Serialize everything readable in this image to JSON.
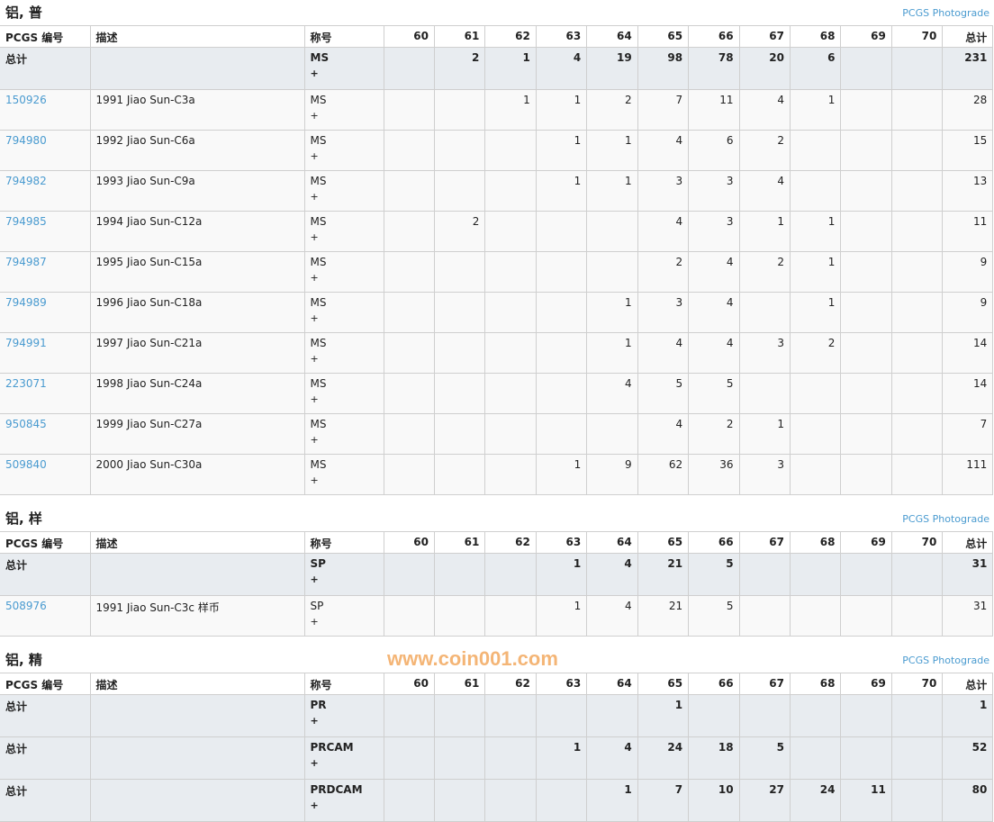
{
  "columns": {
    "pcgs": "PCGS 编号",
    "desc": "描述",
    "designation": "称号",
    "grades": [
      "60",
      "61",
      "62",
      "63",
      "64",
      "65",
      "66",
      "67",
      "68",
      "69",
      "70"
    ],
    "total": "总计"
  },
  "photograde_label": "PCGS Photograde",
  "watermark": "www.coin001.com",
  "link_color": "#4a9bd0",
  "sections": [
    {
      "title": "铝, 普",
      "rows": [
        {
          "type": "total",
          "pcgs": "总计",
          "desc": "",
          "grade": "MS",
          "plus": "+",
          "counts": [
            "",
            "2",
            "1",
            "4",
            "19",
            "98",
            "78",
            "20",
            "6",
            "",
            ""
          ],
          "total": "231"
        },
        {
          "type": "item",
          "pcgs": "150926",
          "desc": "1991 Jiao Sun-C3a",
          "grade": "MS",
          "plus": "+",
          "counts": [
            "",
            "",
            "1",
            "1",
            "2",
            "7",
            "11",
            "4",
            "1",
            "",
            ""
          ],
          "total": "28"
        },
        {
          "type": "item",
          "pcgs": "794980",
          "desc": "1992 Jiao Sun-C6a",
          "grade": "MS",
          "plus": "+",
          "counts": [
            "",
            "",
            "",
            "1",
            "1",
            "4",
            "6",
            "2",
            "",
            "",
            ""
          ],
          "total": "15"
        },
        {
          "type": "item",
          "pcgs": "794982",
          "desc": "1993 Jiao Sun-C9a",
          "grade": "MS",
          "plus": "+",
          "counts": [
            "",
            "",
            "",
            "1",
            "1",
            "3",
            "3",
            "4",
            "",
            "",
            ""
          ],
          "total": "13"
        },
        {
          "type": "item",
          "pcgs": "794985",
          "desc": "1994 Jiao Sun-C12a",
          "grade": "MS",
          "plus": "+",
          "counts": [
            "",
            "2",
            "",
            "",
            "",
            "4",
            "3",
            "1",
            "1",
            "",
            ""
          ],
          "total": "11"
        },
        {
          "type": "item",
          "pcgs": "794987",
          "desc": "1995 Jiao Sun-C15a",
          "grade": "MS",
          "plus": "+",
          "counts": [
            "",
            "",
            "",
            "",
            "",
            "2",
            "4",
            "2",
            "1",
            "",
            ""
          ],
          "total": "9"
        },
        {
          "type": "item",
          "pcgs": "794989",
          "desc": "1996 Jiao Sun-C18a",
          "grade": "MS",
          "plus": "+",
          "counts": [
            "",
            "",
            "",
            "",
            "1",
            "3",
            "4",
            "",
            "1",
            "",
            ""
          ],
          "total": "9"
        },
        {
          "type": "item",
          "pcgs": "794991",
          "desc": "1997 Jiao Sun-C21a",
          "grade": "MS",
          "plus": "+",
          "counts": [
            "",
            "",
            "",
            "",
            "1",
            "4",
            "4",
            "3",
            "2",
            "",
            ""
          ],
          "total": "14"
        },
        {
          "type": "item",
          "pcgs": "223071",
          "desc": "1998 Jiao Sun-C24a",
          "grade": "MS",
          "plus": "+",
          "counts": [
            "",
            "",
            "",
            "",
            "4",
            "5",
            "5",
            "",
            "",
            "",
            ""
          ],
          "total": "14"
        },
        {
          "type": "item",
          "pcgs": "950845",
          "desc": "1999 Jiao Sun-C27a",
          "grade": "MS",
          "plus": "+",
          "counts": [
            "",
            "",
            "",
            "",
            "",
            "4",
            "2",
            "1",
            "",
            "",
            ""
          ],
          "total": "7"
        },
        {
          "type": "item",
          "pcgs": "509840",
          "desc": "2000 Jiao Sun-C30a",
          "grade": "MS",
          "plus": "+",
          "counts": [
            "",
            "",
            "",
            "1",
            "9",
            "62",
            "36",
            "3",
            "",
            "",
            ""
          ],
          "total": "111"
        }
      ]
    },
    {
      "title": "铝, 样",
      "rows": [
        {
          "type": "total",
          "pcgs": "总计",
          "desc": "",
          "grade": "SP",
          "plus": "+",
          "counts": [
            "",
            "",
            "",
            "1",
            "4",
            "21",
            "5",
            "",
            "",
            "",
            ""
          ],
          "total": "31"
        },
        {
          "type": "item",
          "pcgs": "508976",
          "desc": "1991 Jiao Sun-C3c 样币",
          "grade": "SP",
          "plus": "+",
          "counts": [
            "",
            "",
            "",
            "1",
            "4",
            "21",
            "5",
            "",
            "",
            "",
            ""
          ],
          "total": "31"
        }
      ]
    },
    {
      "title": "铝, 精",
      "rows": [
        {
          "type": "total",
          "pcgs": "总计",
          "desc": "",
          "grade": "PR",
          "plus": "+",
          "counts": [
            "",
            "",
            "",
            "",
            "",
            "1",
            "",
            "",
            "",
            "",
            ""
          ],
          "total": "1"
        },
        {
          "type": "total",
          "pcgs": "总计",
          "desc": "",
          "grade": "PRCAM",
          "plus": "+",
          "counts": [
            "",
            "",
            "",
            "1",
            "4",
            "24",
            "18",
            "5",
            "",
            "",
            ""
          ],
          "total": "52"
        },
        {
          "type": "total",
          "pcgs": "总计",
          "desc": "",
          "grade": "PRDCAM",
          "plus": "+",
          "counts": [
            "",
            "",
            "",
            "",
            "1",
            "7",
            "10",
            "27",
            "24",
            "11",
            ""
          ],
          "total": "80"
        }
      ]
    }
  ]
}
